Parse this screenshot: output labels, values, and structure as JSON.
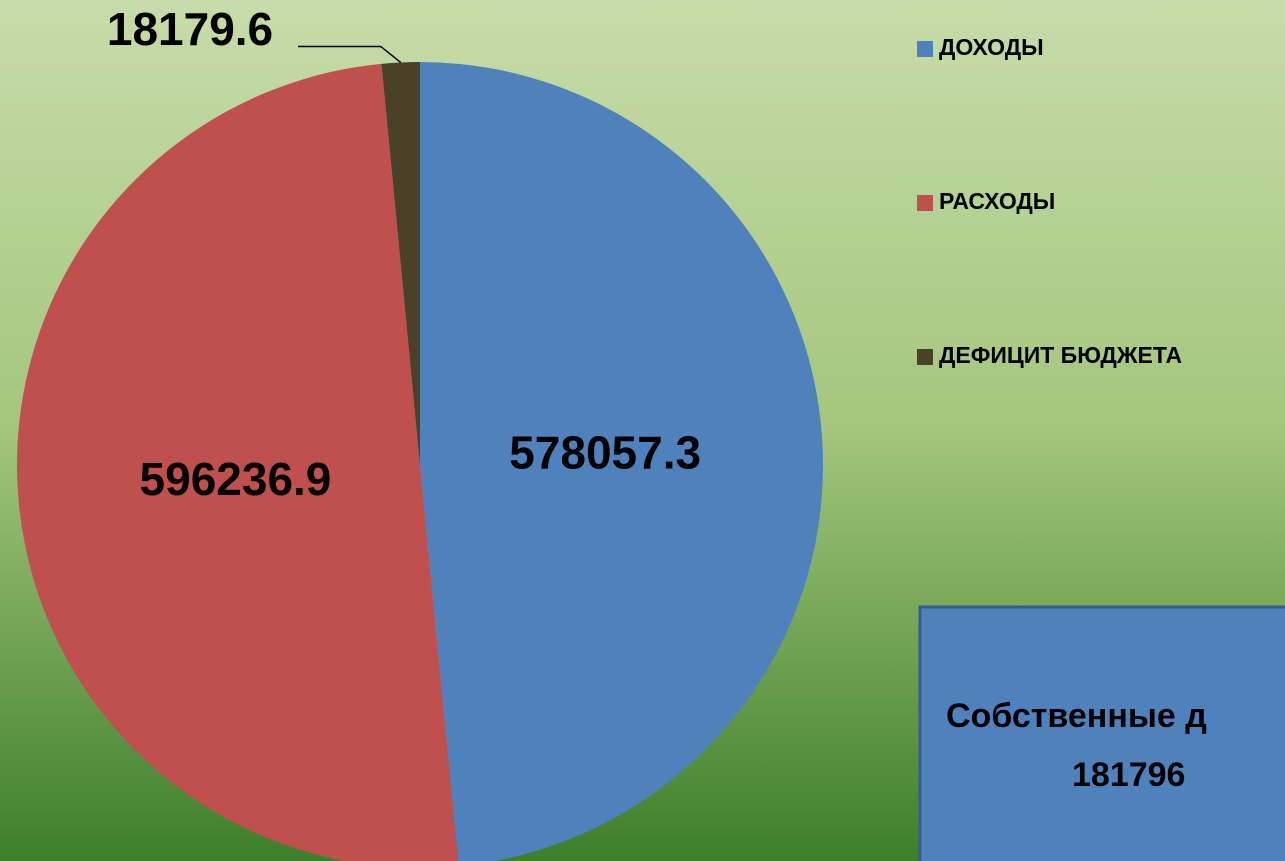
{
  "chart_data": {
    "type": "pie",
    "categories": [
      "ДОХОДЫ",
      "РАСХОДЫ",
      "ДЕФИЦИТ БЮДЖЕТА"
    ],
    "values": [
      578057.3,
      596236.9,
      18179.6
    ],
    "colors": [
      "#4f81bd",
      "#c0504d",
      "#4a4129"
    ],
    "annotation": [
      "Собственные д",
      "181796"
    ]
  }
}
